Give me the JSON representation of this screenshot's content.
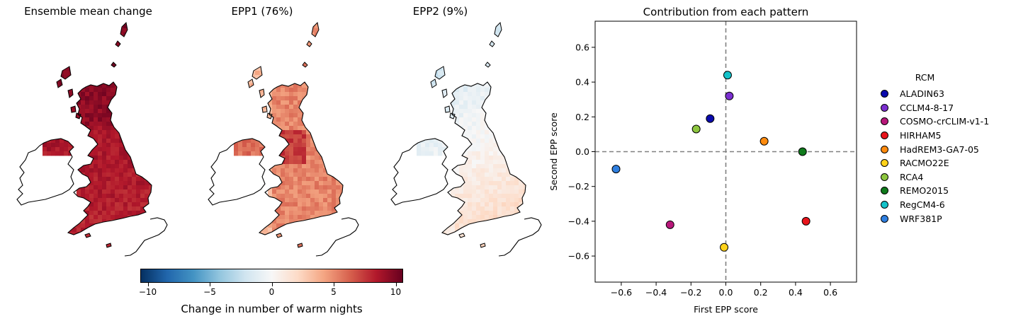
{
  "maps": [
    {
      "title": "Ensemble mean change",
      "mode": "mean"
    },
    {
      "title": "EPP1 (76%)",
      "mode": "epp1"
    },
    {
      "title": "EPP2 (9%)",
      "mode": "epp2"
    }
  ],
  "colorbar": {
    "label": "Change in number of warm nights",
    "ticks": [
      "−10",
      "−5",
      "0",
      "5",
      "10"
    ],
    "range": [
      -10.6,
      10.6
    ],
    "cmap": "RdBu_r"
  },
  "chart_data": {
    "type": "scatter",
    "title": "Contribution from each pattern",
    "xlabel": "First EPP score",
    "ylabel": "Second EPP score",
    "xlim": [
      -0.75,
      0.75
    ],
    "ylim": [
      -0.75,
      0.75
    ],
    "xticks": [
      -0.6,
      -0.4,
      -0.2,
      0.0,
      0.2,
      0.4,
      0.6
    ],
    "yticks": [
      -0.6,
      -0.4,
      -0.2,
      0.0,
      0.2,
      0.4,
      0.6
    ],
    "xtick_labels": [
      "−0.6",
      "−0.4",
      "−0.2",
      "0.0",
      "0.2",
      "0.4",
      "0.6"
    ],
    "ytick_labels": [
      "−0.6",
      "−0.4",
      "−0.2",
      "0.0",
      "0.2",
      "0.4",
      "0.6"
    ],
    "reference_lines": {
      "x": 0.0,
      "y": 0.0,
      "style": "dashed",
      "color": "#808080"
    },
    "grid": false,
    "legend_title": "RCM",
    "legend_position": "right, outside",
    "points": [
      {
        "name": "ALADIN63",
        "x": -0.09,
        "y": 0.19,
        "color": "#0a0aad"
      },
      {
        "name": "CCLM4-8-17",
        "x": 0.02,
        "y": 0.32,
        "color": "#7b2fd0"
      },
      {
        "name": "COSMO-crCLIM-v1-1",
        "x": -0.32,
        "y": -0.42,
        "color": "#b8177a"
      },
      {
        "name": "HIRHAM5",
        "x": 0.46,
        "y": -0.4,
        "color": "#e8141b"
      },
      {
        "name": "HadREM3-GA7-05",
        "x": 0.22,
        "y": 0.06,
        "color": "#ff8b0e"
      },
      {
        "name": "RACMO22E",
        "x": -0.01,
        "y": -0.55,
        "color": "#ffd21a"
      },
      {
        "name": "RCA4",
        "x": -0.17,
        "y": 0.13,
        "color": "#8dc63f"
      },
      {
        "name": "REMO2015",
        "x": 0.44,
        "y": 0.0,
        "color": "#0f7a1b"
      },
      {
        "name": "RegCM4-6",
        "x": 0.01,
        "y": 0.44,
        "color": "#14c2c9"
      },
      {
        "name": "WRF381P",
        "x": -0.63,
        "y": -0.1,
        "color": "#2f7fe0"
      }
    ]
  }
}
